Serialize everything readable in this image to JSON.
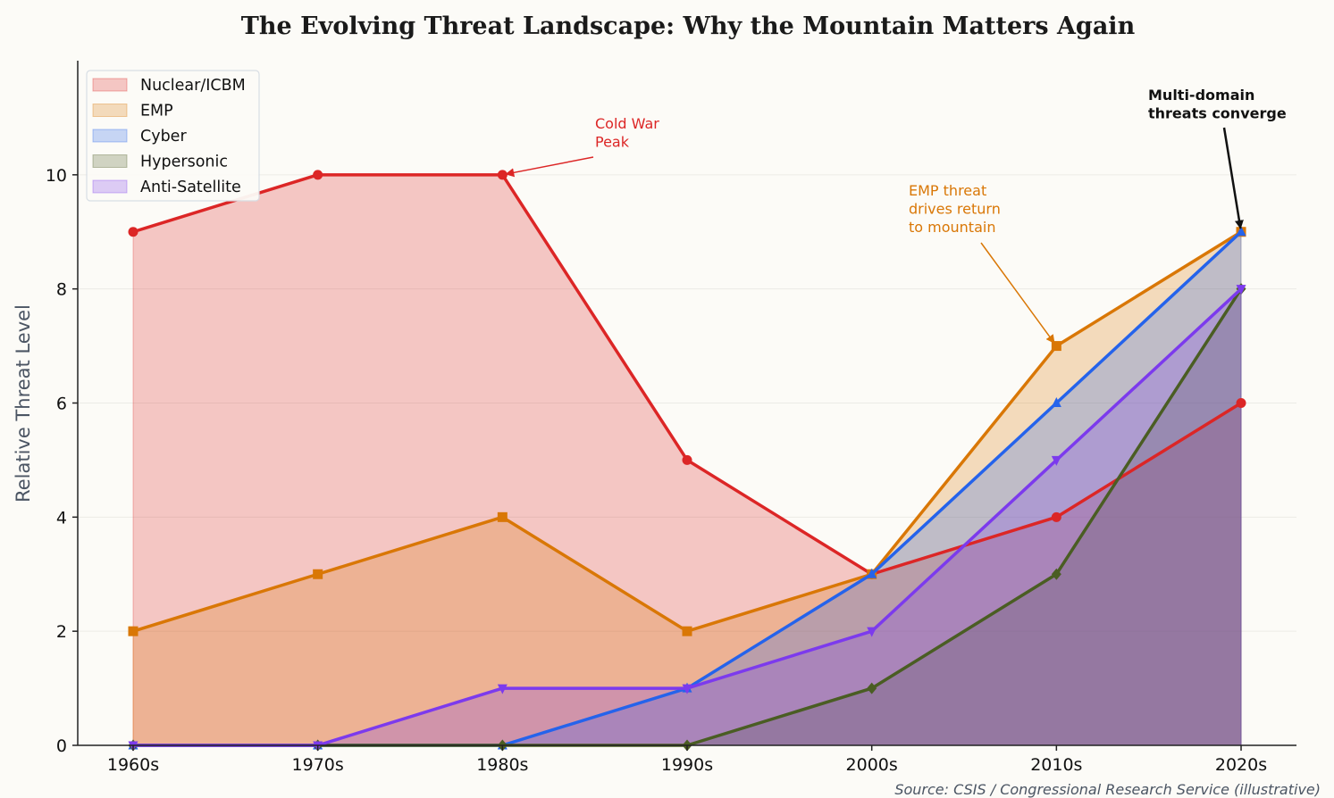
{
  "chart_data": {
    "type": "area",
    "title": "The Evolving Threat Landscape: Why the Mountain Matters Again",
    "xlabel": "",
    "ylabel": "Relative Threat Level",
    "categories": [
      "1960s",
      "1970s",
      "1980s",
      "1990s",
      "2000s",
      "2010s",
      "2020s"
    ],
    "ylim": [
      0,
      12
    ],
    "yticks": [
      0,
      2,
      4,
      6,
      8,
      10
    ],
    "grid": "horizontal",
    "legend_position": "top-left",
    "series": [
      {
        "name": "Nuclear/ICBM",
        "values": [
          9,
          10,
          10,
          5,
          3,
          4,
          6
        ],
        "color": "#dc2626",
        "marker": "circle"
      },
      {
        "name": "EMP",
        "values": [
          2,
          3,
          4,
          2,
          3,
          7,
          9
        ],
        "color": "#d97706",
        "marker": "square"
      },
      {
        "name": "Cyber",
        "values": [
          0,
          0,
          0,
          1,
          3,
          6,
          9
        ],
        "color": "#2563eb",
        "marker": "triangle-up"
      },
      {
        "name": "Hypersonic",
        "values": [
          0,
          0,
          0,
          0,
          1,
          3,
          8
        ],
        "color": "#4a5d23",
        "marker": "diamond"
      },
      {
        "name": "Anti-Satellite",
        "values": [
          0,
          0,
          1,
          1,
          2,
          5,
          8
        ],
        "color": "#7c3aed",
        "marker": "triangle-down"
      }
    ],
    "annotations": [
      {
        "text": [
          "Cold War",
          "Peak"
        ],
        "target": [
          "1980s",
          10
        ],
        "color": "#dc2626"
      },
      {
        "text": [
          "EMP threat",
          "drives return",
          "to mountain"
        ],
        "target": [
          "2010s",
          7
        ],
        "color": "#d97706"
      },
      {
        "text": [
          "Multi-domain",
          "threats converge"
        ],
        "target": [
          "2020s",
          9
        ],
        "color": "#111111"
      }
    ],
    "source": "Source: CSIS / Congressional Research Service (illustrative)"
  }
}
